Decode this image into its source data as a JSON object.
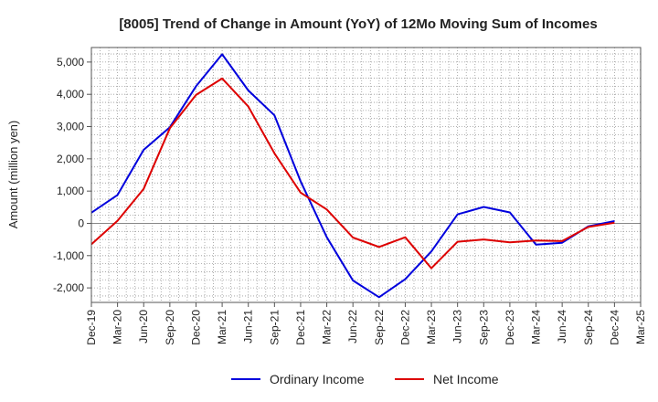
{
  "chart_data": {
    "type": "line",
    "title": "[8005]  Trend of Change in Amount (YoY) of 12Mo Moving Sum of Incomes",
    "xlabel": "",
    "ylabel": "Amount (million yen)",
    "ylim": [
      -2450,
      5450
    ],
    "yticks": [
      -2000,
      -1000,
      0,
      1000,
      2000,
      3000,
      4000,
      5000
    ],
    "ytick_labels": [
      "-2,000",
      "-1,000",
      "0",
      "1,000",
      "2,000",
      "3,000",
      "4,000",
      "5,000"
    ],
    "categories": [
      "Dec-19",
      "Mar-20",
      "Jun-20",
      "Sep-20",
      "Dec-20",
      "Mar-21",
      "Jun-21",
      "Sep-21",
      "Dec-21",
      "Mar-22",
      "Jun-22",
      "Sep-22",
      "Dec-22",
      "Mar-23",
      "Jun-23",
      "Sep-23",
      "Dec-23",
      "Mar-24",
      "Jun-24",
      "Sep-24",
      "Dec-24",
      "Mar-25"
    ],
    "grid": true,
    "legend_position": "bottom-center",
    "series": [
      {
        "name": "Ordinary Income",
        "color": "#0000dd",
        "values": [
          330,
          880,
          2280,
          2980,
          4250,
          5240,
          4120,
          3350,
          1300,
          -430,
          -1770,
          -2290,
          -1730,
          -870,
          280,
          510,
          340,
          -660,
          -600,
          -90,
          70,
          null
        ]
      },
      {
        "name": "Net Income",
        "color": "#dd0000",
        "values": [
          -650,
          80,
          1070,
          2950,
          3980,
          4490,
          3620,
          2170,
          950,
          430,
          -440,
          -730,
          -430,
          -1390,
          -570,
          -500,
          -590,
          -530,
          -550,
          -110,
          20,
          null
        ]
      }
    ]
  }
}
